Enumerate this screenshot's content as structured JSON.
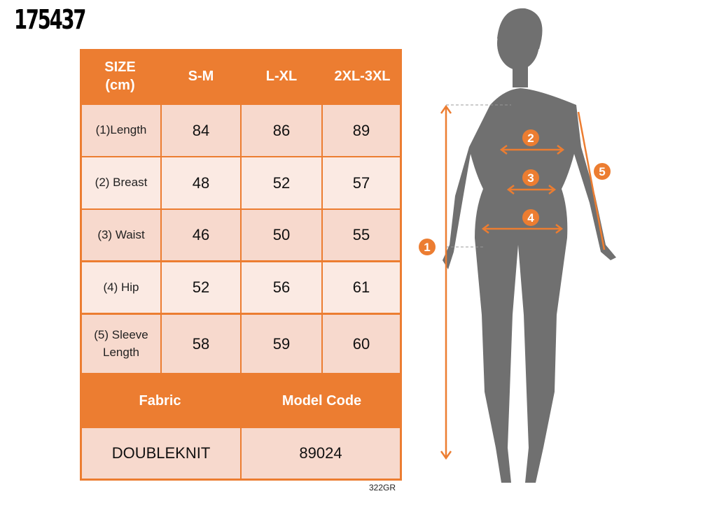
{
  "product_code": "175437",
  "table": {
    "header": [
      "SIZE\n(cm)",
      "S-M",
      "L-XL",
      "2XL-3XL"
    ],
    "rows": [
      {
        "label": "(1)Length",
        "values": [
          "84",
          "86",
          "89"
        ]
      },
      {
        "label": "(2) Breast",
        "values": [
          "48",
          "52",
          "57"
        ]
      },
      {
        "label": "(3) Waist",
        "values": [
          "46",
          "50",
          "55"
        ]
      },
      {
        "label": "(4) Hip",
        "values": [
          "52",
          "56",
          "61"
        ]
      },
      {
        "label": "(5) Sleeve Length",
        "values": [
          "58",
          "59",
          "60"
        ]
      }
    ],
    "fabric_label": "Fabric",
    "model_code_label": "Model Code",
    "fabric": "DOUBLEKNIT",
    "model_code": "89024"
  },
  "footer_code": "322GR",
  "figure_markers": [
    "1",
    "2",
    "3",
    "4",
    "5"
  ],
  "colors": {
    "accent": "#ec7d31",
    "cell_light": "#f7d9cd",
    "silhouette": "#6f6f6f"
  }
}
